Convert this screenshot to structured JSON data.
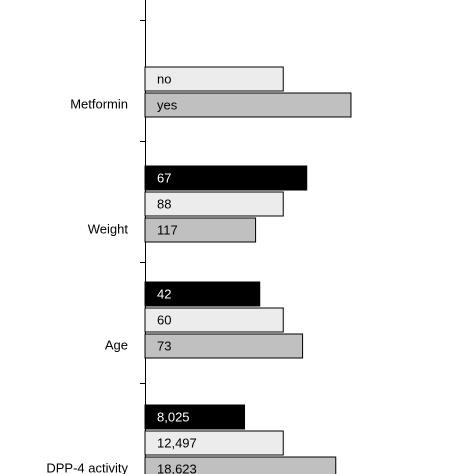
{
  "chart_data": {
    "type": "bar",
    "orientation": "horizontal",
    "xlim": [
      0,
      2.38
    ],
    "groups": [
      {
        "name": "Metformin",
        "bars": [
          {
            "label": "no",
            "value": 1.0,
            "color": "#ececec"
          },
          {
            "label": "yes",
            "value": 1.49,
            "color": "#c0c0c0"
          }
        ]
      },
      {
        "name": "Weight",
        "bars": [
          {
            "label": "67",
            "value": 1.17,
            "color": "#000000"
          },
          {
            "label": "88",
            "value": 1.0,
            "color": "#ececec"
          },
          {
            "label": "117",
            "value": 0.8,
            "color": "#c0c0c0"
          }
        ]
      },
      {
        "name": "Age",
        "bars": [
          {
            "label": "42",
            "value": 0.83,
            "color": "#000000"
          },
          {
            "label": "60",
            "value": 1.0,
            "color": "#ececec"
          },
          {
            "label": "73",
            "value": 1.14,
            "color": "#c0c0c0"
          }
        ]
      },
      {
        "name": "DPP-4 activity",
        "bars": [
          {
            "label": "8,025",
            "value": 0.72,
            "color": "#000000"
          },
          {
            "label": "12,497",
            "value": 1.0,
            "color": "#ececec"
          },
          {
            "label": "18,623",
            "value": 1.38,
            "color": "#c0c0c0"
          }
        ]
      }
    ]
  }
}
